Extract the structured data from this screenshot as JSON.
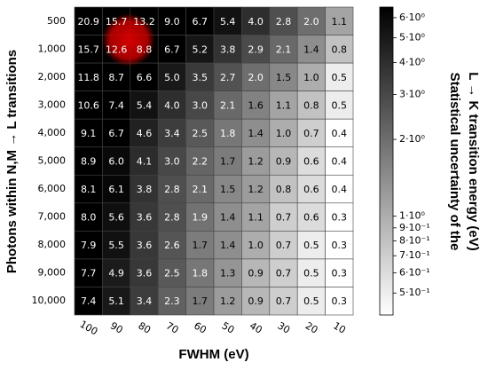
{
  "chart_data": {
    "type": "heatmap",
    "x_label": "FWHM (eV)",
    "y_label": "Photons within N,M → L transitions",
    "colorbar_label": [
      "Statistical uncertainty of the",
      "L → K transition energy (eV)"
    ],
    "x_categories": [
      "100",
      "90",
      "80",
      "70",
      "60",
      "50",
      "40",
      "30",
      "20",
      "10"
    ],
    "y_categories": [
      "500",
      "1,000",
      "2,000",
      "3,000",
      "4,000",
      "5,000",
      "6,000",
      "7,000",
      "8,000",
      "9,000",
      "10,000"
    ],
    "values": [
      [
        20.9,
        15.7,
        13.2,
        9.0,
        6.7,
        5.4,
        4.0,
        2.8,
        2.0,
        1.1
      ],
      [
        15.7,
        12.6,
        8.8,
        6.7,
        5.2,
        3.8,
        2.9,
        2.1,
        1.4,
        0.8
      ],
      [
        11.8,
        8.7,
        6.6,
        5.0,
        3.5,
        2.7,
        2.0,
        1.5,
        1.0,
        0.5
      ],
      [
        10.6,
        7.4,
        5.4,
        4.0,
        3.0,
        2.1,
        1.6,
        1.1,
        0.8,
        0.5
      ],
      [
        9.1,
        6.7,
        4.6,
        3.4,
        2.5,
        1.8,
        1.4,
        1.0,
        0.7,
        0.4
      ],
      [
        8.9,
        6.0,
        4.1,
        3.0,
        2.2,
        1.7,
        1.2,
        0.9,
        0.6,
        0.4
      ],
      [
        8.1,
        6.1,
        3.8,
        2.8,
        2.1,
        1.5,
        1.2,
        0.8,
        0.6,
        0.4
      ],
      [
        8.0,
        5.6,
        3.6,
        2.8,
        1.9,
        1.4,
        1.1,
        0.7,
        0.6,
        0.3
      ],
      [
        7.9,
        5.5,
        3.6,
        2.6,
        1.7,
        1.4,
        1.0,
        0.7,
        0.5,
        0.3
      ],
      [
        7.7,
        4.9,
        3.6,
        2.5,
        1.8,
        1.3,
        0.9,
        0.7,
        0.5,
        0.3
      ],
      [
        7.4,
        5.1,
        3.4,
        2.3,
        1.7,
        1.2,
        0.9,
        0.7,
        0.5,
        0.3
      ]
    ],
    "value_labels": [
      [
        "20.9",
        "15.7",
        "13.2",
        "9.0",
        "6.7",
        "5.4",
        "4.0",
        "2.8",
        "2.0",
        "1.1"
      ],
      [
        "15.7",
        "12.6",
        "8.8",
        "6.7",
        "5.2",
        "3.8",
        "2.9",
        "2.1",
        "1.4",
        "0.8"
      ],
      [
        "11.8",
        "8.7",
        "6.6",
        "5.0",
        "3.5",
        "2.7",
        "2.0",
        "1.5",
        "1.0",
        "0.5"
      ],
      [
        "10.6",
        "7.4",
        "5.4",
        "4.0",
        "3.0",
        "2.1",
        "1.6",
        "1.1",
        "0.8",
        "0.5"
      ],
      [
        "9.1",
        "6.7",
        "4.6",
        "3.4",
        "2.5",
        "1.8",
        "1.4",
        "1.0",
        "0.7",
        "0.4"
      ],
      [
        "8.9",
        "6.0",
        "4.1",
        "3.0",
        "2.2",
        "1.7",
        "1.2",
        "0.9",
        "0.6",
        "0.4"
      ],
      [
        "8.1",
        "6.1",
        "3.8",
        "2.8",
        "2.1",
        "1.5",
        "1.2",
        "0.8",
        "0.6",
        "0.4"
      ],
      [
        "8.0",
        "5.6",
        "3.6",
        "2.8",
        "1.9",
        "1.4",
        "1.1",
        "0.7",
        "0.6",
        "0.3"
      ],
      [
        "7.9",
        "5.5",
        "3.6",
        "2.6",
        "1.7",
        "1.4",
        "1.0",
        "0.7",
        "0.5",
        "0.3"
      ],
      [
        "7.7",
        "4.9",
        "3.6",
        "2.5",
        "1.8",
        "1.3",
        "0.9",
        "0.7",
        "0.5",
        "0.3"
      ],
      [
        "7.4",
        "5.1",
        "3.4",
        "2.3",
        "1.7",
        "1.2",
        "0.9",
        "0.7",
        "0.5",
        "0.3"
      ]
    ],
    "colormap": "gray_r",
    "color_scale": "log",
    "clim": [
      0.41,
      6.6
    ],
    "cticks": [
      {
        "value": 6,
        "label": "6·10⁰"
      },
      {
        "value": 5,
        "label": "5·10⁰"
      },
      {
        "value": 4,
        "label": "4·10⁰"
      },
      {
        "value": 3,
        "label": "3·10⁰"
      },
      {
        "value": 2,
        "label": "2·10⁰"
      },
      {
        "value": 1,
        "label": "1·10⁰"
      },
      {
        "value": 0.9,
        "label": "9·10⁻¹"
      },
      {
        "value": 0.8,
        "label": "8·10⁻¹"
      },
      {
        "value": 0.7,
        "label": "7·10⁻¹"
      },
      {
        "value": 0.6,
        "label": "6·10⁻¹"
      },
      {
        "value": 0.5,
        "label": "5·10⁻¹"
      }
    ]
  }
}
